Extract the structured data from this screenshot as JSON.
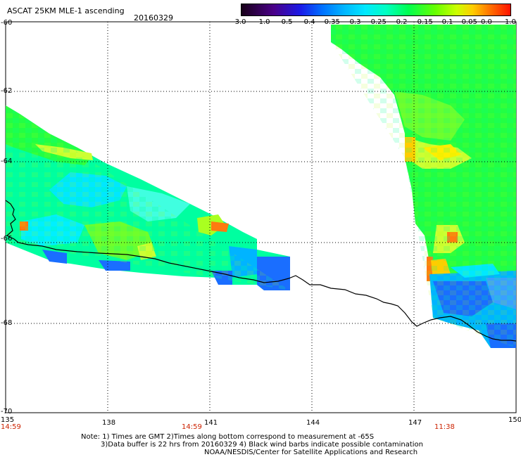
{
  "header": {
    "title": "ASCAT 25KM MLE-1 ascending",
    "date": "20160329"
  },
  "colorbar": {
    "labels": [
      "-3.0",
      "-1.0",
      "-0.5",
      "-0.4",
      "-0.35",
      "-0.3",
      "-0.25",
      "-0.2",
      "-0.15",
      "-0.1",
      "-0.05",
      "0.0",
      "1.0"
    ],
    "colors": [
      "#180018",
      "#4a0088",
      "#2222ee",
      "#0077ff",
      "#00b4ff",
      "#00e8ff",
      "#00ffc8",
      "#00ff50",
      "#66ff00",
      "#ccff00",
      "#ffcc00",
      "#ff7700",
      "#ff1100"
    ]
  },
  "axes": {
    "lat_labels": [
      "-60",
      "-62",
      "-64",
      "-66",
      "-68",
      "-70"
    ],
    "lon_labels": [
      "135",
      "138",
      "141",
      "144",
      "147",
      "150"
    ]
  },
  "times": {
    "t1": "14:59",
    "t2": "14:59",
    "t3": "11:38",
    "color": "#cc2200"
  },
  "notes": {
    "line1": "Note: 1) Times are GMT 2)Times along bottom correspond to measurement at -65S",
    "line2": "3)Data buffer is 22 hrs from 20160329 4) Black wind barbs indicate possible contamination",
    "line3": "NOAA/NESDIS/Center for Satellite Applications and Research"
  }
}
